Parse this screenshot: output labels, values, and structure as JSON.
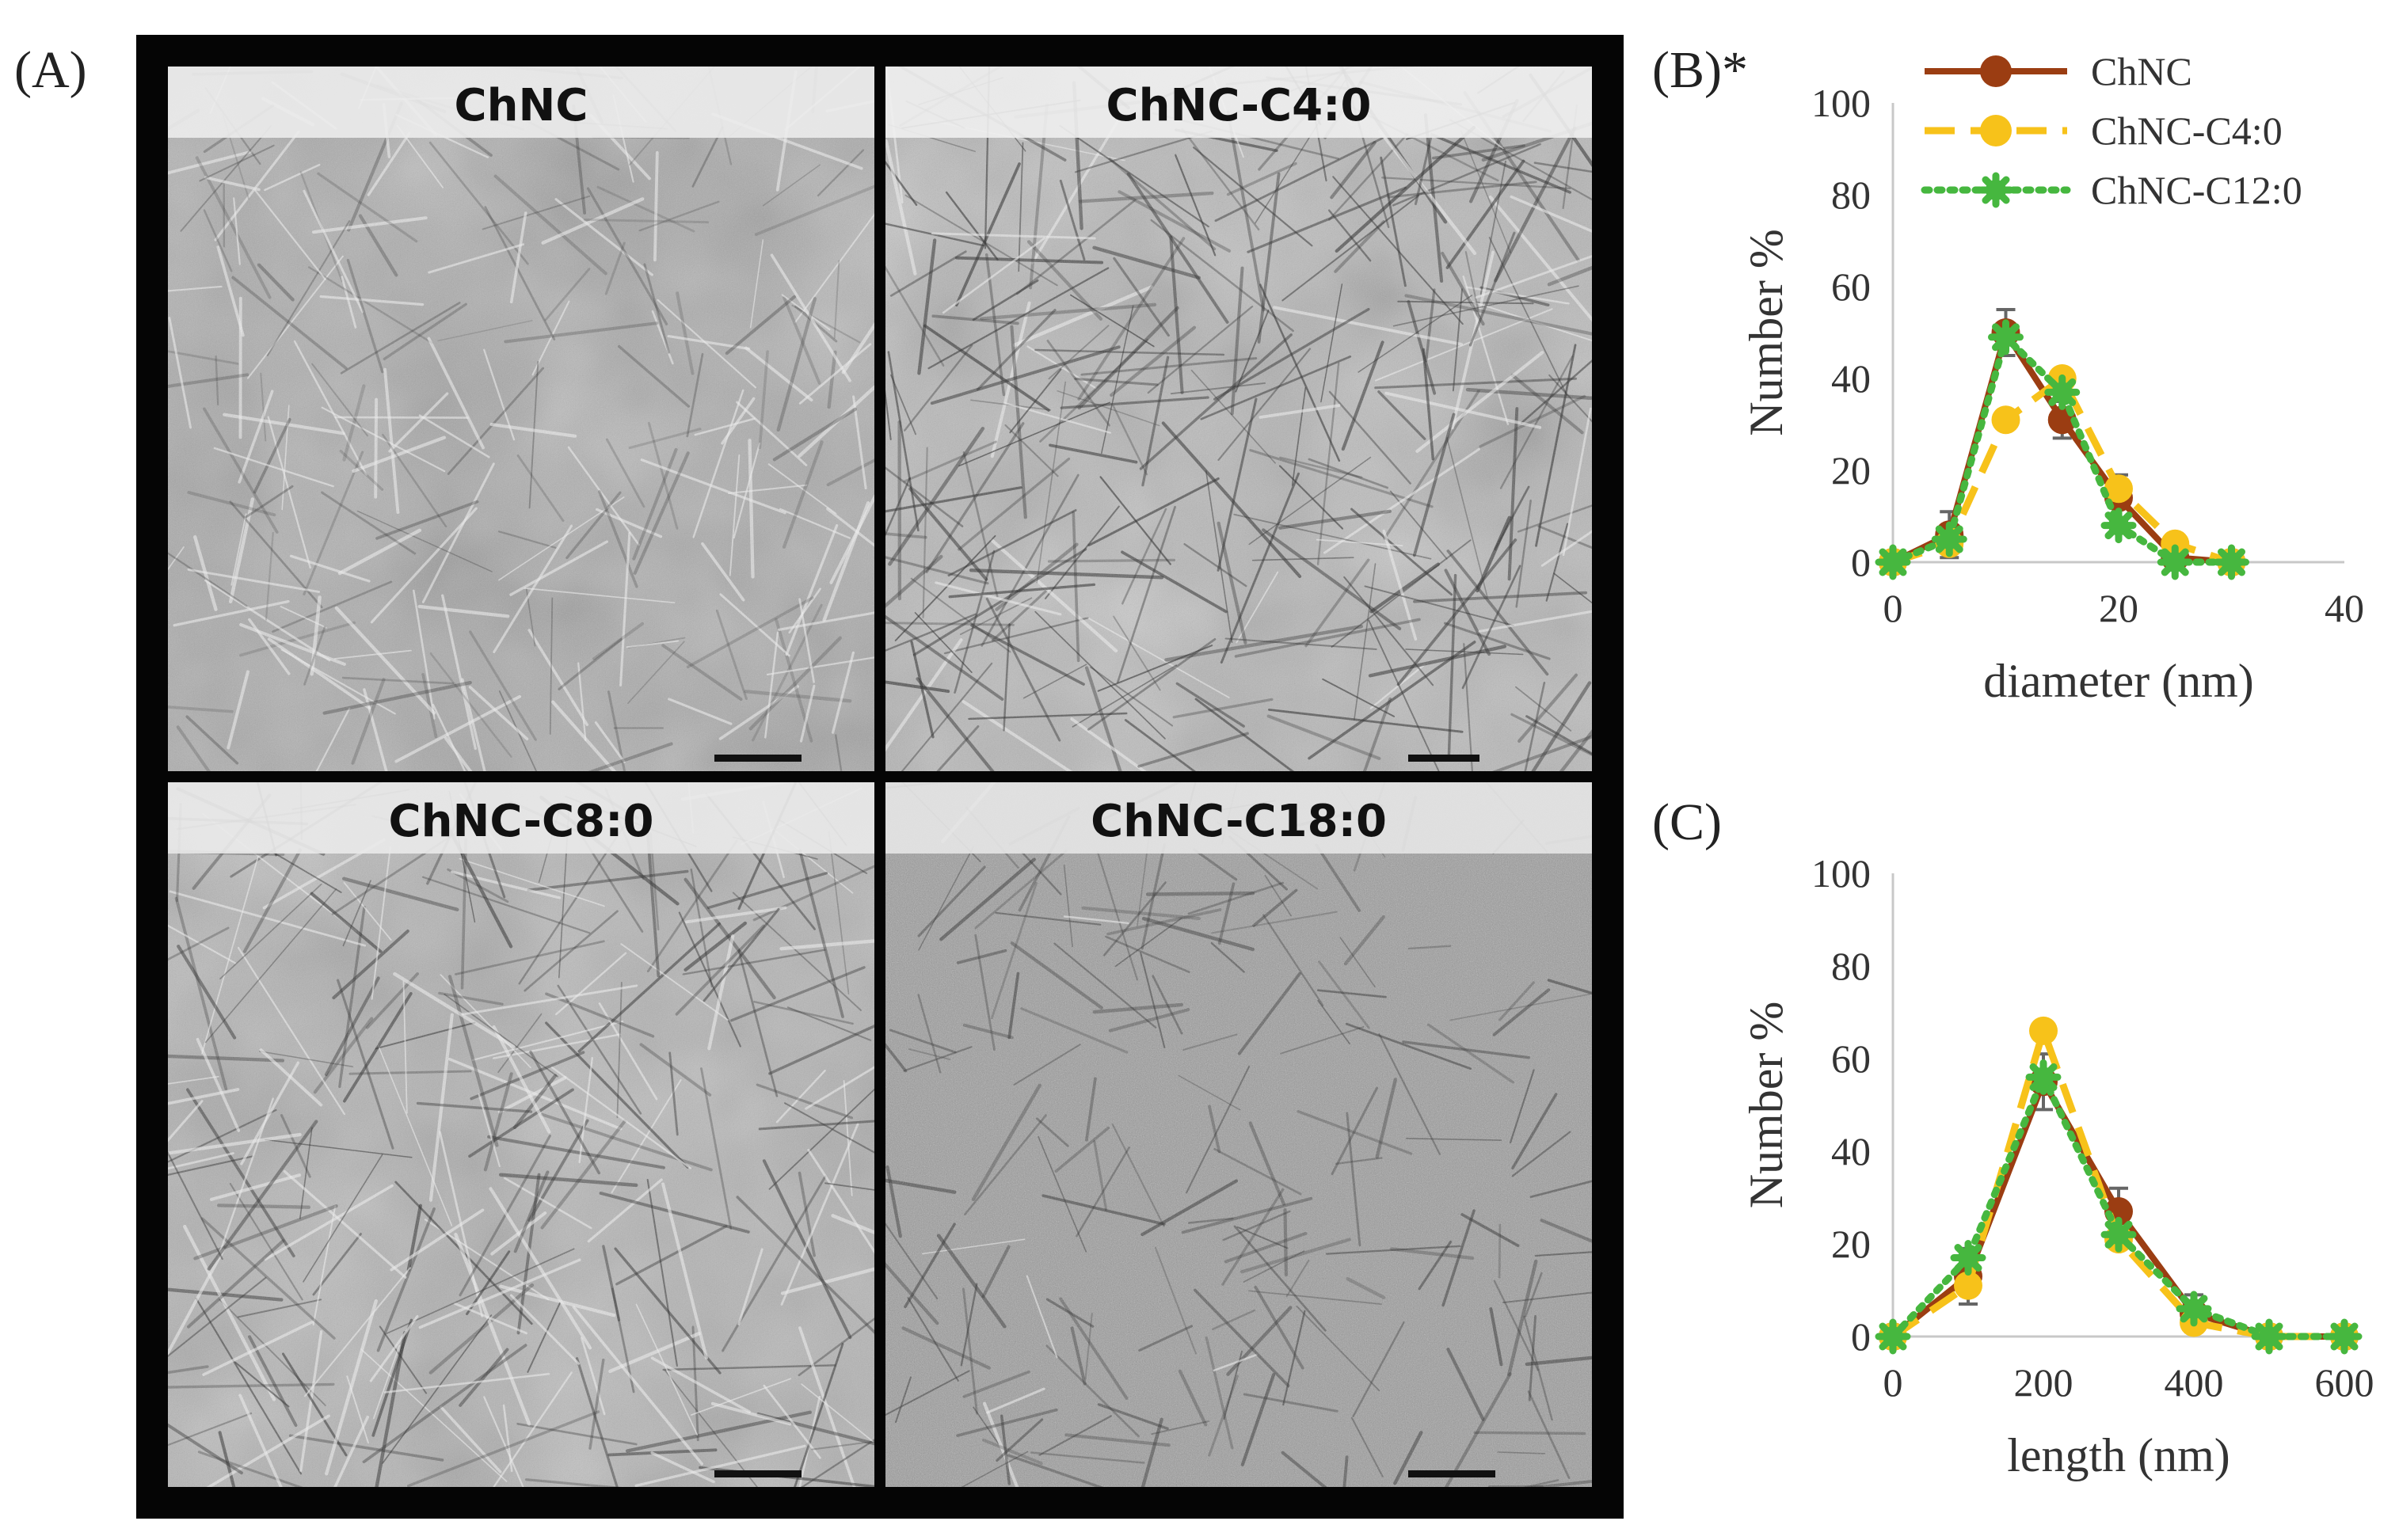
{
  "panels": {
    "a_label": "(A)",
    "b_label": "(B)*",
    "c_label": "(C)"
  },
  "micrographs": [
    {
      "label": "ChNC",
      "tone": "light-needles"
    },
    {
      "label": "ChNC-C4:0",
      "tone": "dark-network"
    },
    {
      "label": "ChNC-C8:0",
      "tone": "dark-bundles"
    },
    {
      "label": "ChNC-C18:0",
      "tone": "grainy"
    }
  ],
  "legend": [
    "ChNC",
    "ChNC-C4:0",
    "ChNC-C12:0"
  ],
  "colors": {
    "ChNC": "#9b3d12",
    "ChNC-C4:0": "#f7c21a",
    "ChNC-C12:0": "#46b73f",
    "frame": "#050505",
    "axis": "#c8c8c8",
    "errorbar": "#666666"
  },
  "chart_data": [
    {
      "type": "line",
      "panel": "B",
      "xlabel": "diameter (nm)",
      "ylabel": "Number %",
      "xlim": [
        0,
        40
      ],
      "ylim": [
        0,
        100
      ],
      "xticks": [
        0,
        20,
        40
      ],
      "yticks": [
        0,
        20,
        40,
        60,
        80,
        100
      ],
      "grid": false,
      "legend_position": "top-right",
      "x": [
        0,
        5,
        10,
        15,
        20,
        25,
        30
      ],
      "series": [
        {
          "name": "ChNC",
          "style": "solid",
          "values": [
            0,
            6,
            50,
            31,
            14,
            1,
            0
          ],
          "errors": [
            0,
            5,
            5,
            4,
            5,
            1,
            0
          ]
        },
        {
          "name": "ChNC-C4:0",
          "style": "dashed",
          "values": [
            0,
            4,
            31,
            40,
            16,
            4,
            0
          ],
          "errors": [
            0,
            0,
            0,
            0,
            0,
            0,
            0
          ]
        },
        {
          "name": "ChNC-C12:0",
          "style": "dotted",
          "values": [
            0,
            5,
            49,
            37,
            8,
            0,
            0
          ],
          "errors": [
            0,
            0,
            0,
            0,
            0,
            0,
            0
          ]
        }
      ]
    },
    {
      "type": "line",
      "panel": "C",
      "xlabel": "length (nm)",
      "ylabel": "Number %",
      "xlim": [
        0,
        600
      ],
      "ylim": [
        0,
        100
      ],
      "xticks": [
        0,
        200,
        400,
        600
      ],
      "yticks": [
        0,
        20,
        40,
        60,
        80,
        100
      ],
      "grid": false,
      "x": [
        0,
        100,
        200,
        300,
        400,
        500,
        600
      ],
      "series": [
        {
          "name": "ChNC",
          "style": "solid",
          "values": [
            0,
            13,
            55,
            27,
            5,
            0,
            0
          ],
          "errors": [
            0,
            6,
            6,
            5,
            4,
            0,
            0
          ]
        },
        {
          "name": "ChNC-C4:0",
          "style": "dashed",
          "values": [
            0,
            11,
            66,
            21,
            3,
            0,
            0
          ],
          "errors": [
            0,
            0,
            0,
            0,
            0,
            0,
            0
          ]
        },
        {
          "name": "ChNC-C12:0",
          "style": "dotted",
          "values": [
            0,
            17,
            56,
            22,
            6,
            0,
            0
          ],
          "errors": [
            0,
            0,
            0,
            0,
            0,
            0,
            0
          ]
        }
      ]
    }
  ]
}
